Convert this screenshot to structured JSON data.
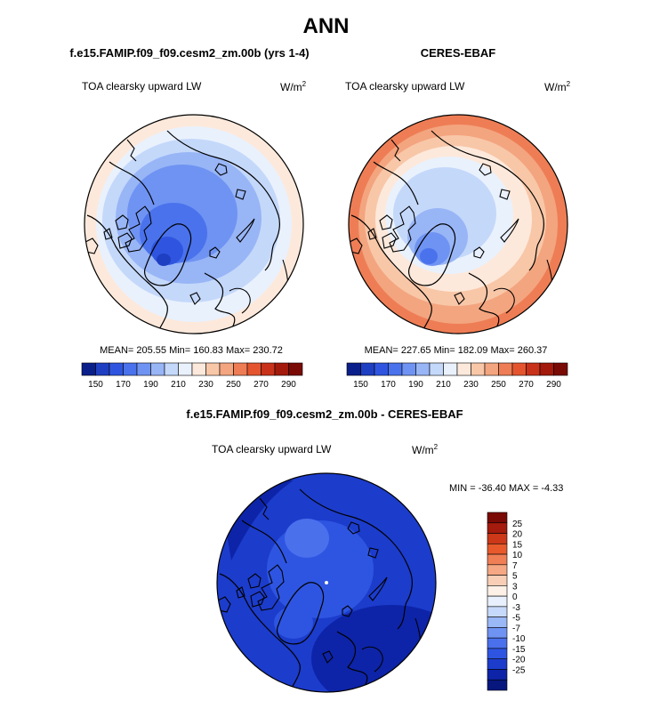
{
  "main_title": "ANN",
  "panels": [
    {
      "title": "f.e15.FAMIP.f09_f09.cesm2_zm.00b (yrs 1-4)",
      "variable": "TOA clearsky upward LW",
      "units": "W/m",
      "units_exp": "2",
      "stats": "MEAN= 205.55  Min= 160.83  Max= 230.72"
    },
    {
      "title": "CERES-EBAF",
      "variable": "TOA clearsky upward LW",
      "units": "W/m",
      "units_exp": "2",
      "stats": "MEAN= 227.65  Min= 182.09  Max= 260.37"
    },
    {
      "title": "f.e15.FAMIP.f09_f09.cesm2_zm.00b - CERES-EBAF",
      "variable": "TOA clearsky upward LW",
      "units": "W/m",
      "units_exp": "2",
      "stats": "MIN = -36.40 MAX =  -4.33"
    }
  ],
  "colorbar_top": {
    "colors": [
      "#0a1f8a",
      "#1f3fc2",
      "#2f55e0",
      "#4a72ec",
      "#6f93f2",
      "#98b5f6",
      "#c4d8fa",
      "#e9f1fd",
      "#fde9db",
      "#f8c7a8",
      "#f3a57f",
      "#ee7d55",
      "#e4552f",
      "#c8321a",
      "#a31a0c",
      "#7a0a05"
    ],
    "labels": [
      "150",
      "170",
      "190",
      "210",
      "230",
      "250",
      "270",
      "290"
    ]
  },
  "colorbar_diff": {
    "colors": [
      "#7a0a05",
      "#a51b0d",
      "#cc3818",
      "#e85a2c",
      "#f07f55",
      "#f5a883",
      "#f9ceb6",
      "#fdf0e6",
      "#e8f0fd",
      "#c7d9fa",
      "#9ab7f6",
      "#6f93f2",
      "#4a70ec",
      "#2e55e2",
      "#1c3ccc",
      "#0d24a8",
      "#07177e"
    ],
    "labels": [
      "25",
      "20",
      "15",
      "10",
      "7",
      "5",
      "3",
      "0",
      "-3",
      "-5",
      "-7",
      "-10",
      "-15",
      "-20",
      "-25"
    ]
  },
  "colors": {
    "coastline": "#000000"
  }
}
